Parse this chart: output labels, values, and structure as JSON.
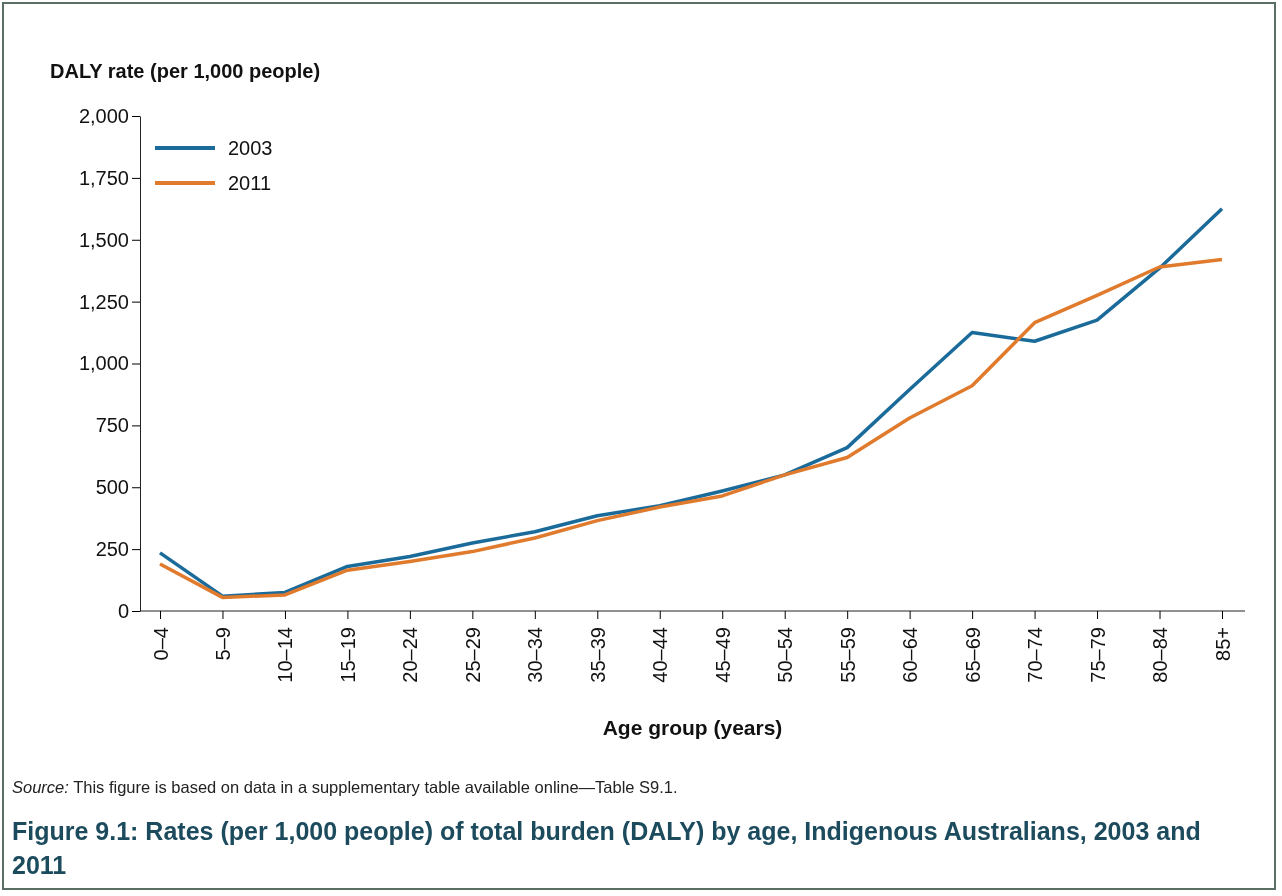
{
  "chart_data": {
    "type": "line",
    "title": "Figure 9.1: Rates (per 1,000 people) of total burden (DALY) by age, Indigenous Australians, 2003 and 2011",
    "ylabel": "DALY rate (per 1,000 people)",
    "xlabel": "Age group (years)",
    "annotations": [
      "Source: This figure is based on data in a supplementary table available online—Table S9.1."
    ],
    "categories": [
      "0–4",
      "5–9",
      "10–14",
      "15–19",
      "20–24",
      "25–29",
      "30–34",
      "35–39",
      "40–44",
      "45–49",
      "50–54",
      "55–59",
      "60–64",
      "65–69",
      "70–74",
      "75–79",
      "80–84",
      "85+"
    ],
    "series": [
      {
        "name": "2003",
        "color": "#1b6b9a",
        "values": [
          235,
          60,
          75,
          180,
          220,
          275,
          320,
          385,
          425,
          485,
          550,
          660,
          895,
          1125,
          1090,
          1175,
          1385,
          1625
        ]
      },
      {
        "name": "2011",
        "color": "#e07a2c",
        "values": [
          190,
          55,
          65,
          165,
          200,
          240,
          295,
          365,
          420,
          465,
          550,
          620,
          780,
          910,
          1165,
          1275,
          1390,
          1420
        ]
      }
    ],
    "ylim": [
      0,
      2000
    ],
    "yticks": [
      {
        "value": 0,
        "label": "0"
      },
      {
        "value": 250,
        "label": "250"
      },
      {
        "value": 500,
        "label": "500"
      },
      {
        "value": 750,
        "label": "750"
      },
      {
        "value": 1000,
        "label": "1,000"
      },
      {
        "value": 1250,
        "label": "1,250"
      },
      {
        "value": 1500,
        "label": "1,500"
      },
      {
        "value": 1750,
        "label": "1,750"
      },
      {
        "value": 2000,
        "label": "2,000"
      }
    ],
    "grid": false,
    "legend": "top left",
    "marker": "none",
    "line_style": "solid"
  }
}
